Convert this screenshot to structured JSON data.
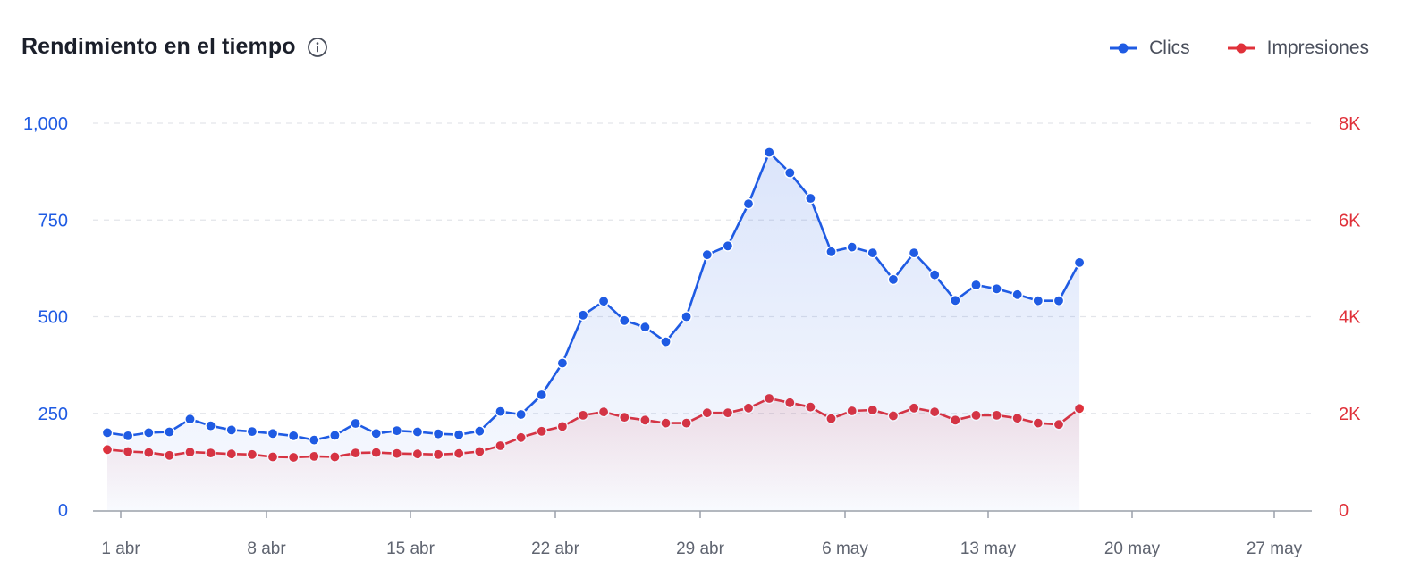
{
  "header": {
    "title": "Rendimiento en el tiempo",
    "info_icon": "info-circle-icon"
  },
  "legend": {
    "clicks_label": "Clics",
    "impressions_label": "Impresiones"
  },
  "colors": {
    "clicks": "#1f5be3",
    "impressions": "#e0313a",
    "grid": "#e3e5ea",
    "axis": "#9aa0aa"
  },
  "chart_data": {
    "type": "line",
    "title": "Rendimiento en el tiempo",
    "x_tick_labels": [
      "1 abr",
      "8 abr",
      "15 abr",
      "22 abr",
      "29 abr",
      "6 may",
      "13 may",
      "20 may",
      "27 may"
    ],
    "y_left": {
      "ylim": [
        0,
        1000
      ],
      "ticks": [
        0,
        250,
        500,
        750,
        1000
      ],
      "tick_labels": [
        "0",
        "250",
        "500",
        "750",
        "1,000"
      ]
    },
    "y_right": {
      "ylim": [
        0,
        8000
      ],
      "ticks": [
        0,
        2000,
        4000,
        6000,
        8000
      ],
      "tick_labels": [
        "0",
        "2K",
        "4K",
        "6K",
        "8K"
      ]
    },
    "grid": true,
    "legend_position": "top-right",
    "series": [
      {
        "name": "Clics",
        "axis": "left",
        "area_fill": true,
        "values": [
          200,
          192,
          200,
          202,
          235,
          218,
          207,
          203,
          198,
          192,
          181,
          193,
          224,
          198,
          205,
          202,
          197,
          195,
          204,
          255,
          247,
          298,
          380,
          504,
          540,
          490,
          473,
          435,
          500,
          660,
          683,
          792,
          925,
          872,
          806,
          668,
          680,
          665,
          596,
          665,
          608,
          542,
          582,
          572,
          557,
          541,
          541,
          640
        ]
      },
      {
        "name": "Impresiones",
        "axis": "right",
        "area_fill": true,
        "values": [
          1250,
          1210,
          1190,
          1130,
          1200,
          1180,
          1160,
          1150,
          1100,
          1090,
          1110,
          1100,
          1180,
          1190,
          1170,
          1160,
          1150,
          1170,
          1210,
          1330,
          1500,
          1630,
          1730,
          1960,
          2030,
          1920,
          1860,
          1800,
          1800,
          2010,
          2010,
          2110,
          2310,
          2220,
          2130,
          1890,
          2050,
          2070,
          1950,
          2110,
          2030,
          1860,
          1960,
          1960,
          1900,
          1800,
          1770,
          2100
        ]
      }
    ]
  }
}
